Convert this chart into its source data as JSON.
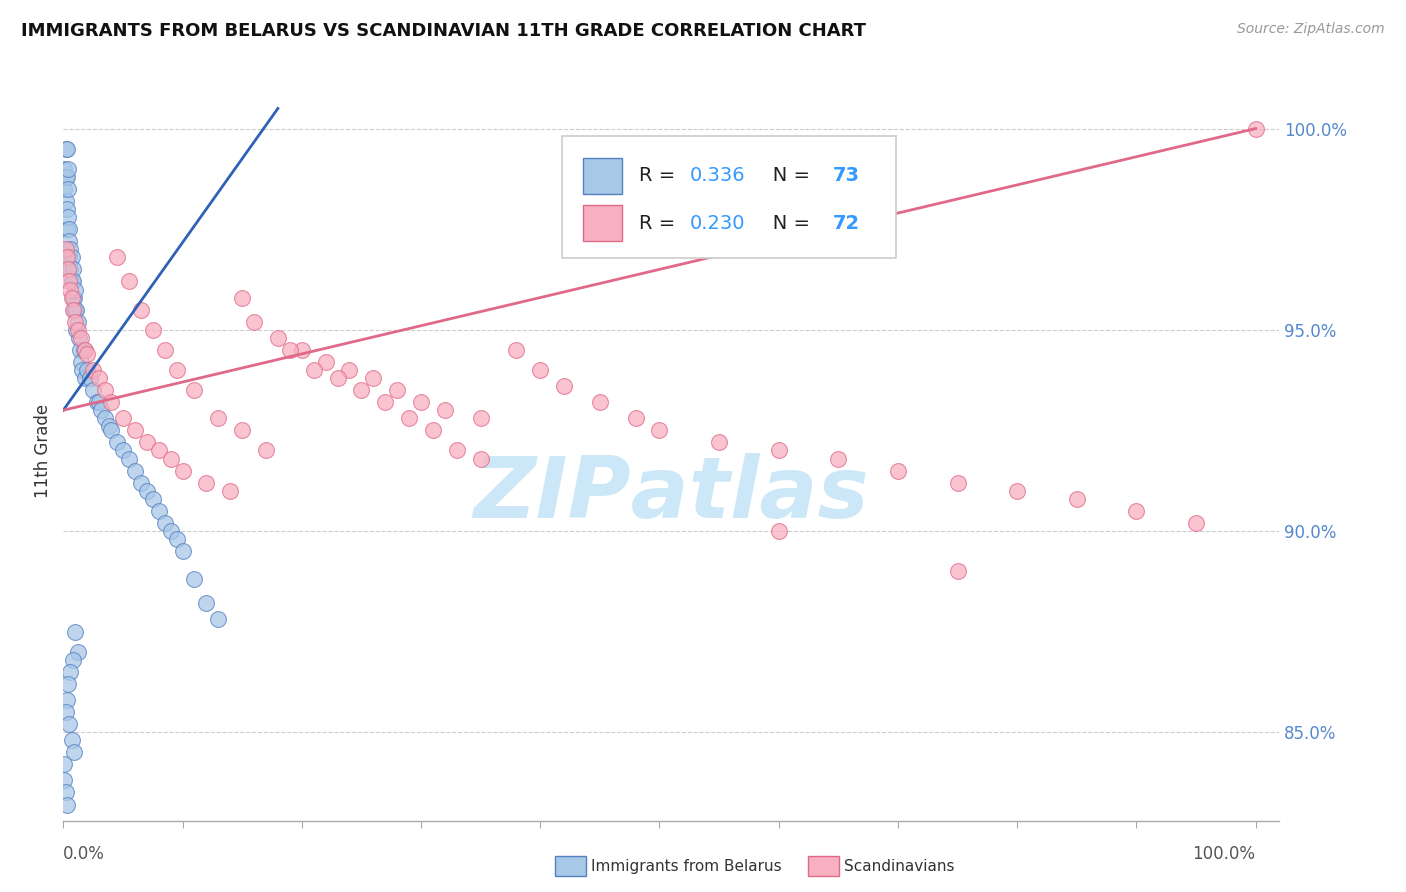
{
  "title": "IMMIGRANTS FROM BELARUS VS SCANDINAVIAN 11TH GRADE CORRELATION CHART",
  "source": "Source: ZipAtlas.com",
  "ylabel": "11th Grade",
  "ytick_vals": [
    0.85,
    0.9,
    0.95,
    1.0
  ],
  "ytick_labels": [
    "85.0%",
    "90.0%",
    "95.0%",
    "100.0%"
  ],
  "r_values": [
    0.336,
    0.23
  ],
  "n_values": [
    73,
    72
  ],
  "blue_fill": "#a8c8e8",
  "blue_edge": "#5580c0",
  "pink_fill": "#f8b0c0",
  "pink_edge": "#e06888",
  "trend_blue_color": "#3060b8",
  "trend_pink_color": "#e06888",
  "legend_r_color": "#3399ff",
  "legend_n_color": "#3399ff",
  "ytick_color": "#5588cc",
  "xtick_color": "#555555",
  "watermark_color": "#cce8f8",
  "grid_color": "#cccccc",
  "blue_scatter_x": [
    0.001,
    0.001,
    0.002,
    0.002,
    0.002,
    0.003,
    0.003,
    0.003,
    0.003,
    0.004,
    0.004,
    0.004,
    0.005,
    0.005,
    0.005,
    0.006,
    0.006,
    0.007,
    0.007,
    0.008,
    0.008,
    0.008,
    0.009,
    0.009,
    0.01,
    0.01,
    0.011,
    0.011,
    0.012,
    0.013,
    0.014,
    0.015,
    0.016,
    0.017,
    0.018,
    0.02,
    0.022,
    0.025,
    0.028,
    0.03,
    0.032,
    0.035,
    0.038,
    0.04,
    0.045,
    0.05,
    0.055,
    0.06,
    0.065,
    0.07,
    0.075,
    0.08,
    0.085,
    0.09,
    0.095,
    0.1,
    0.11,
    0.12,
    0.13,
    0.01,
    0.012,
    0.008,
    0.006,
    0.004,
    0.003,
    0.002,
    0.005,
    0.007,
    0.009,
    0.001,
    0.001,
    0.002,
    0.003
  ],
  "blue_scatter_y": [
    0.99,
    0.985,
    0.995,
    0.988,
    0.982,
    0.995,
    0.988,
    0.98,
    0.975,
    0.99,
    0.985,
    0.978,
    0.975,
    0.968,
    0.972,
    0.97,
    0.965,
    0.968,
    0.962,
    0.965,
    0.958,
    0.962,
    0.958,
    0.955,
    0.96,
    0.955,
    0.955,
    0.95,
    0.952,
    0.948,
    0.945,
    0.942,
    0.94,
    0.945,
    0.938,
    0.94,
    0.938,
    0.935,
    0.932,
    0.932,
    0.93,
    0.928,
    0.926,
    0.925,
    0.922,
    0.92,
    0.918,
    0.915,
    0.912,
    0.91,
    0.908,
    0.905,
    0.902,
    0.9,
    0.898,
    0.895,
    0.888,
    0.882,
    0.878,
    0.875,
    0.87,
    0.868,
    0.865,
    0.862,
    0.858,
    0.855,
    0.852,
    0.848,
    0.845,
    0.842,
    0.838,
    0.835,
    0.832
  ],
  "pink_scatter_x": [
    0.002,
    0.003,
    0.004,
    0.005,
    0.006,
    0.007,
    0.008,
    0.01,
    0.012,
    0.015,
    0.018,
    0.02,
    0.025,
    0.03,
    0.035,
    0.04,
    0.05,
    0.06,
    0.07,
    0.08,
    0.09,
    0.1,
    0.12,
    0.14,
    0.15,
    0.16,
    0.18,
    0.2,
    0.22,
    0.24,
    0.26,
    0.28,
    0.3,
    0.32,
    0.35,
    0.38,
    0.4,
    0.42,
    0.45,
    0.48,
    0.5,
    0.55,
    0.6,
    0.65,
    0.7,
    0.75,
    0.8,
    0.85,
    0.9,
    0.95,
    1.0,
    0.045,
    0.055,
    0.065,
    0.075,
    0.085,
    0.095,
    0.11,
    0.13,
    0.15,
    0.17,
    0.19,
    0.21,
    0.23,
    0.25,
    0.27,
    0.29,
    0.31,
    0.33,
    0.35,
    0.6,
    0.75
  ],
  "pink_scatter_y": [
    0.97,
    0.968,
    0.965,
    0.962,
    0.96,
    0.958,
    0.955,
    0.952,
    0.95,
    0.948,
    0.945,
    0.944,
    0.94,
    0.938,
    0.935,
    0.932,
    0.928,
    0.925,
    0.922,
    0.92,
    0.918,
    0.915,
    0.912,
    0.91,
    0.958,
    0.952,
    0.948,
    0.945,
    0.942,
    0.94,
    0.938,
    0.935,
    0.932,
    0.93,
    0.928,
    0.945,
    0.94,
    0.936,
    0.932,
    0.928,
    0.925,
    0.922,
    0.92,
    0.918,
    0.915,
    0.912,
    0.91,
    0.908,
    0.905,
    0.902,
    1.0,
    0.968,
    0.962,
    0.955,
    0.95,
    0.945,
    0.94,
    0.935,
    0.928,
    0.925,
    0.92,
    0.945,
    0.94,
    0.938,
    0.935,
    0.932,
    0.928,
    0.925,
    0.92,
    0.918,
    0.9,
    0.89
  ],
  "blue_trend_x": [
    0.0,
    0.18
  ],
  "blue_trend_y": [
    0.93,
    1.005
  ],
  "pink_trend_x": [
    0.0,
    1.0
  ],
  "pink_trend_y": [
    0.93,
    1.0
  ],
  "xlim": [
    0.0,
    1.02
  ],
  "ylim": [
    0.828,
    1.012
  ]
}
